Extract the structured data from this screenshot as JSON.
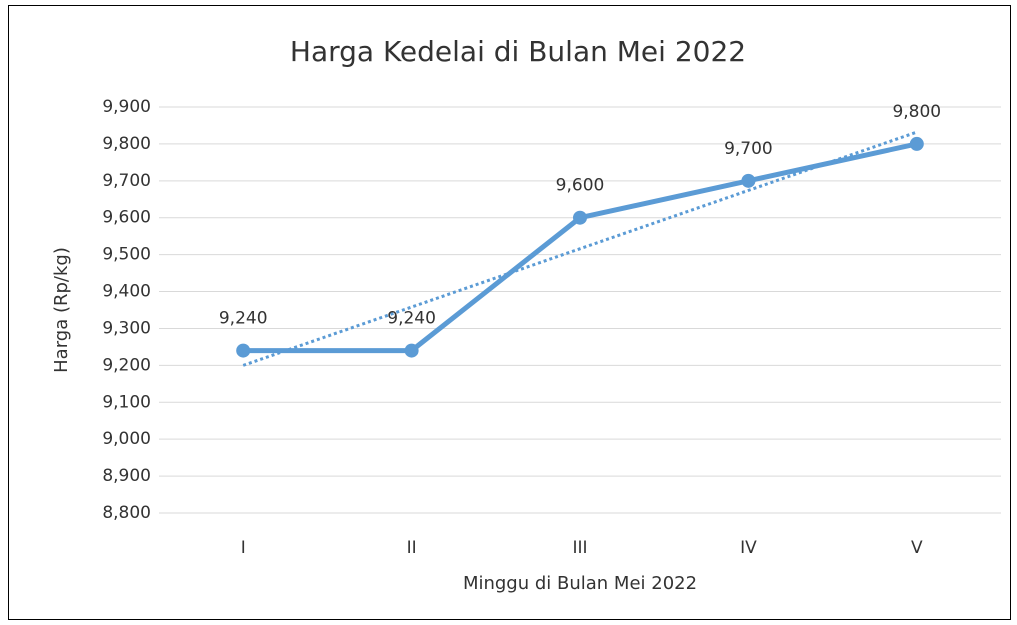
{
  "chart_data": {
    "type": "line",
    "title": "Harga Kedelai di Bulan Mei 2022",
    "x_label": "Minggu di Bulan Mei 2022",
    "y_label": "Harga (Rp/kg)",
    "categories": [
      "I",
      "II",
      "III",
      "IV",
      "V"
    ],
    "series": [
      {
        "name": "Harga",
        "color": "#5b9bd5",
        "values": [
          9240,
          9240,
          9600,
          9700,
          9800
        ],
        "value_labels": [
          "9,240",
          "9,240",
          "9,600",
          "9,700",
          "9,800"
        ]
      }
    ],
    "trendline": "linear",
    "ylim": [
      8800,
      9900
    ],
    "yticks": [
      {
        "value": 8800,
        "label": "8,800"
      },
      {
        "value": 8900,
        "label": "8,900"
      },
      {
        "value": 9000,
        "label": "9,000"
      },
      {
        "value": 9100,
        "label": "9,100"
      },
      {
        "value": 9200,
        "label": "9,200"
      },
      {
        "value": 9300,
        "label": "9,300"
      },
      {
        "value": 9400,
        "label": "9,400"
      },
      {
        "value": 9500,
        "label": "9,500"
      },
      {
        "value": 9600,
        "label": "9,600"
      },
      {
        "value": 9700,
        "label": "9,700"
      },
      {
        "value": 9800,
        "label": "9,800"
      },
      {
        "value": 9900,
        "label": "9,900"
      }
    ],
    "grid": true
  }
}
